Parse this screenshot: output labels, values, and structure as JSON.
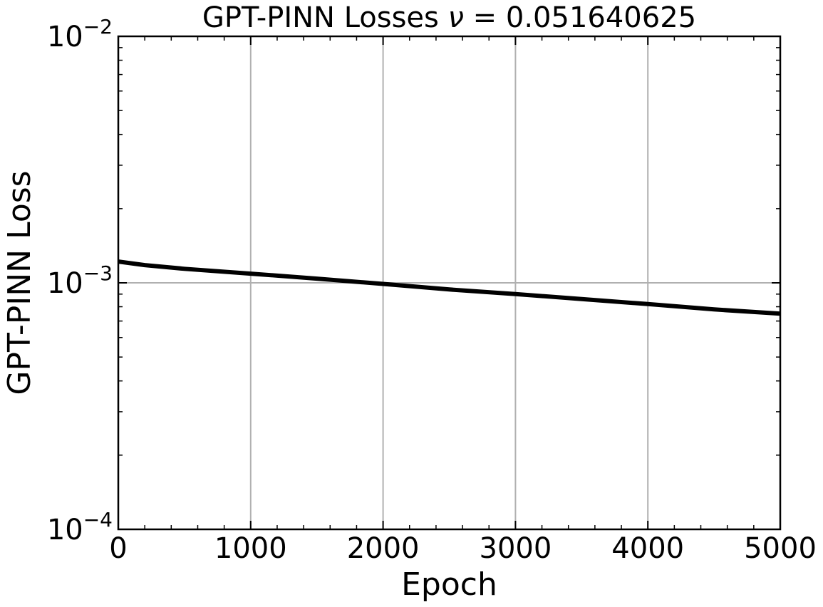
{
  "chart_data": {
    "type": "line",
    "title": {
      "prefix": "GPT-PINN Losses ",
      "symbol": "ν",
      "value": " = 0.051640625"
    },
    "xlabel": "Epoch",
    "ylabel": "GPT-PINN Loss",
    "xlim": [
      0,
      5000
    ],
    "ylim": [
      0.0001,
      0.01
    ],
    "yscale": "log",
    "grid": true,
    "x_ticks": [
      0,
      1000,
      2000,
      3000,
      4000,
      5000
    ],
    "x_tick_labels": [
      "0",
      "1000",
      "2000",
      "3000",
      "4000",
      "5000"
    ],
    "y_ticks": [
      {
        "value": 0.0001,
        "base": "10",
        "exp": "−4"
      },
      {
        "value": 0.001,
        "base": "10",
        "exp": "−3"
      },
      {
        "value": 0.01,
        "base": "10",
        "exp": "−2"
      }
    ],
    "series": [
      {
        "color": "#000000",
        "x": [
          0,
          100,
          200,
          500,
          1000,
          1500,
          2000,
          2500,
          3000,
          3500,
          4000,
          4500,
          5000
        ],
        "y": [
          0.00122,
          0.0012,
          0.00118,
          0.00114,
          0.00109,
          0.00104,
          0.00099,
          0.00094,
          0.0009,
          0.00086,
          0.00082,
          0.00078,
          0.00075
        ]
      }
    ]
  }
}
